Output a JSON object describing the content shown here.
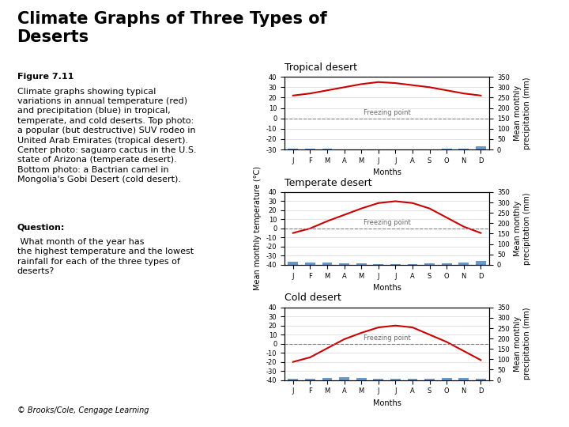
{
  "title": "Climate Graphs of Three Types of\nDeserts",
  "annotations": [
    {
      "heading": "Figure 7.11",
      "text": "Climate graphs showing typical\nvariations in annual temperature (red)\nand precipitation (blue) in tropical,\ntemperate, and cold deserts. Top photo:\na popular (but destructive) SUV rodeo in\nUnited Arab Emirates (tropical desert).\nCenter photo: saguaro cactus in the U.S.\nstate of Arizona (temperate desert).\nBottom photo: a Bactrian camel in\nMongolia's Gobi Desert (cold desert)."
    },
    {
      "heading": "Question:",
      "text": " What month of the year has\nthe highest temperature and the lowest\nrainfall for each of the three types of\ndeserts?"
    },
    {
      "text": "© Brooks/Cole, Cengage Learning"
    }
  ],
  "chart_data": [
    {
      "type": "combo",
      "title": "Tropical desert",
      "xlabel": "Months",
      "y2label": "Mean monthly\nprecipitation (mm)",
      "categories": [
        "J",
        "F",
        "M",
        "A",
        "M",
        "J",
        "J",
        "A",
        "S",
        "O",
        "N",
        "D"
      ],
      "series": [
        {
          "type": "bar",
          "axis": "y2",
          "color": "#6699CC",
          "values": [
            5,
            3,
            2,
            1,
            1,
            0,
            0,
            0,
            1,
            2,
            5,
            15
          ]
        },
        {
          "type": "line",
          "color": "#CC0000",
          "values": [
            22,
            24,
            27,
            30,
            33,
            35,
            34,
            32,
            30,
            27,
            24,
            22
          ]
        }
      ],
      "ylim": [
        -30,
        40
      ],
      "yticks": [
        -30,
        -20,
        -10,
        0,
        10,
        20,
        30,
        40
      ],
      "y2lim": [
        0,
        350
      ],
      "y2ticks": [
        0,
        50,
        100,
        150,
        200,
        250,
        300,
        350
      ],
      "annotations": [
        {
          "text": "Freezing point",
          "y": 0
        }
      ],
      "grid": true
    },
    {
      "type": "combo",
      "title": "Temperate desert",
      "xlabel": "Months",
      "ylabel": "Mean monthly temperature (°C)",
      "y2label": "Mean monthly\nprecipitation (mm)",
      "categories": [
        "J",
        "F",
        "M",
        "A",
        "M",
        "J",
        "J",
        "A",
        "S",
        "O",
        "N",
        "D"
      ],
      "series": [
        {
          "type": "bar",
          "axis": "y2",
          "color": "#6699CC",
          "values": [
            15,
            12,
            10,
            8,
            5,
            3,
            2,
            3,
            5,
            8,
            12,
            18
          ]
        },
        {
          "type": "line",
          "color": "#CC0000",
          "values": [
            -5,
            0,
            8,
            15,
            22,
            28,
            30,
            28,
            22,
            12,
            2,
            -5
          ]
        }
      ],
      "ylim": [
        -40,
        40
      ],
      "yticks": [
        -40,
        -30,
        -20,
        -10,
        0,
        10,
        20,
        30,
        40
      ],
      "y2lim": [
        0,
        350
      ],
      "y2ticks": [
        0,
        50,
        100,
        150,
        200,
        250,
        300,
        350
      ],
      "annotations": [
        {
          "text": "Freezing point",
          "y": 0
        }
      ],
      "grid": true
    },
    {
      "type": "combo",
      "title": "Cold desert",
      "xlabel": "Months",
      "y2label": "Mean monthly\nprecipitation (mm)",
      "categories": [
        "J",
        "F",
        "M",
        "A",
        "M",
        "J",
        "J",
        "A",
        "S",
        "O",
        "N",
        "D"
      ],
      "series": [
        {
          "type": "bar",
          "axis": "y2",
          "color": "#6699CC",
          "values": [
            8,
            8,
            10,
            12,
            10,
            8,
            5,
            5,
            8,
            10,
            10,
            8
          ]
        },
        {
          "type": "line",
          "color": "#CC0000",
          "values": [
            -20,
            -15,
            -5,
            5,
            12,
            18,
            20,
            18,
            10,
            2,
            -8,
            -18
          ]
        }
      ],
      "ylim": [
        -40,
        40
      ],
      "yticks": [
        -40,
        -30,
        -20,
        -10,
        0,
        10,
        20,
        30,
        40
      ],
      "y2lim": [
        0,
        350
      ],
      "y2ticks": [
        0,
        50,
        100,
        150,
        200,
        250,
        300,
        350
      ],
      "annotations": [
        {
          "text": "Freezing point",
          "y": 0
        }
      ],
      "grid": true
    }
  ]
}
